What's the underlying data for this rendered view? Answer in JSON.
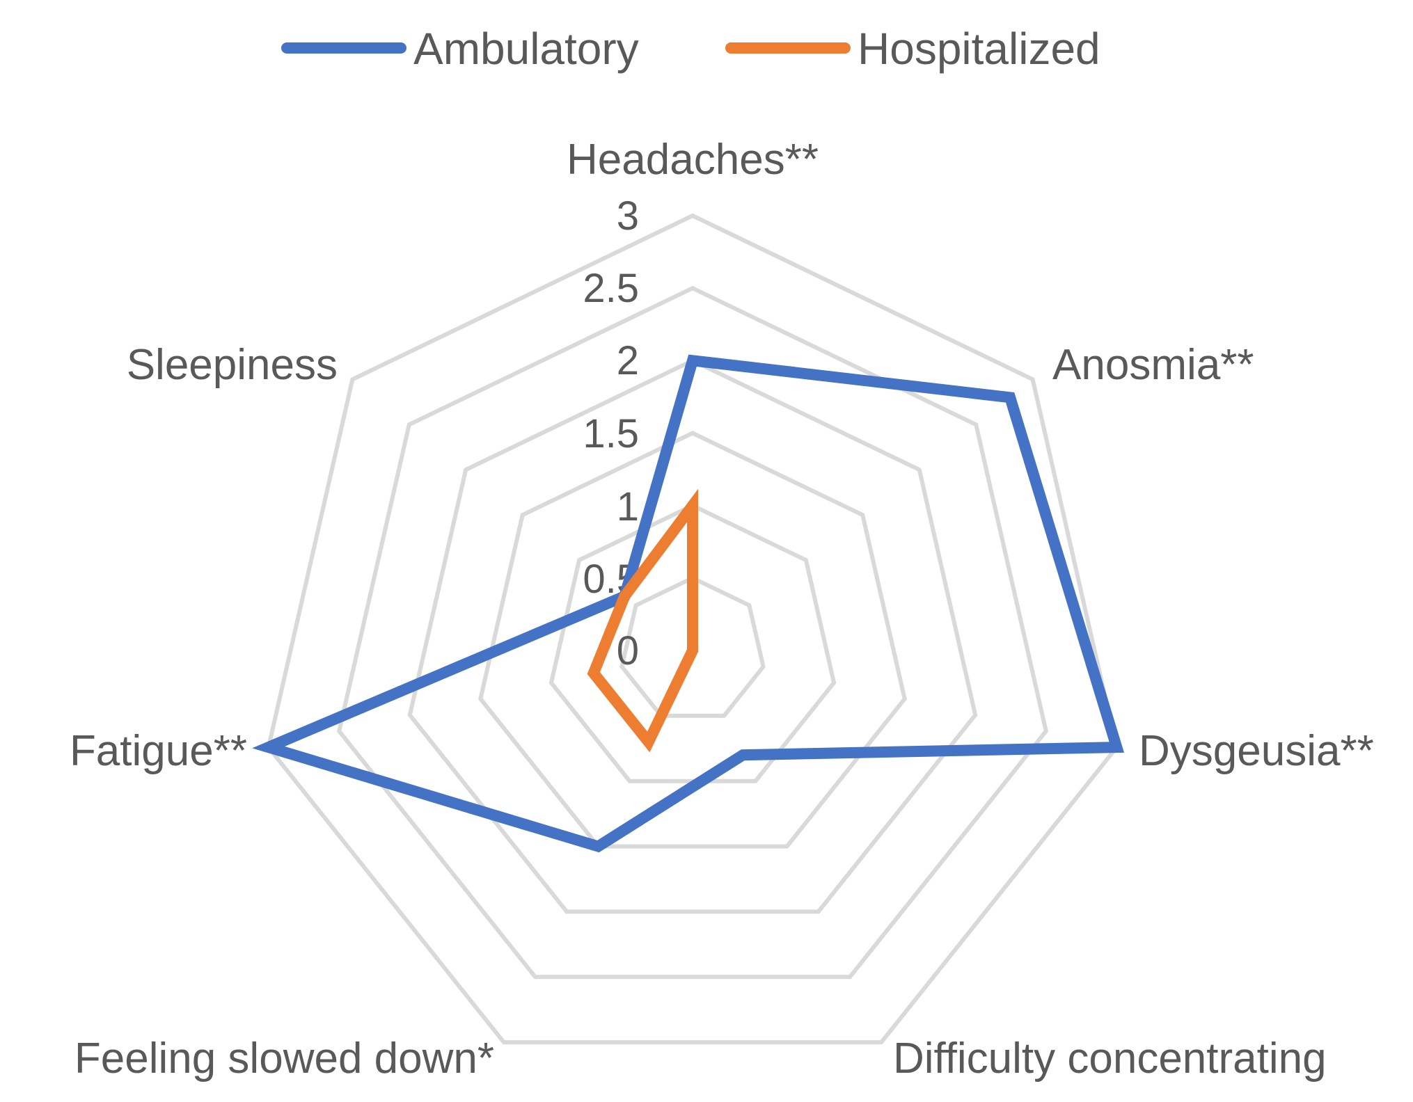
{
  "chart_data": {
    "type": "radar",
    "title": "",
    "categories": [
      "Headaches**",
      "Anosmia**",
      "Dysgeusia**",
      "Difficulty concentrating",
      "Feeling slowed down*",
      "Fatigue**",
      "Sleepiness"
    ],
    "axis": {
      "min": 0,
      "max": 3,
      "ticks": [
        "0",
        "0.5",
        "1",
        "1.5",
        "2",
        "2.5",
        "3"
      ],
      "grid": true
    },
    "legend": {
      "position": "top"
    },
    "series": [
      {
        "name": "Ambulatory",
        "color": "#4472c4",
        "values": [
          2.0,
          2.8,
          3.0,
          0.8,
          1.5,
          3.0,
          0.6
        ]
      },
      {
        "name": "Hospitalized",
        "color": "#ed7d31",
        "values": [
          1.0,
          0.0,
          0.0,
          0.0,
          0.7,
          0.7,
          0.6
        ]
      }
    ]
  }
}
